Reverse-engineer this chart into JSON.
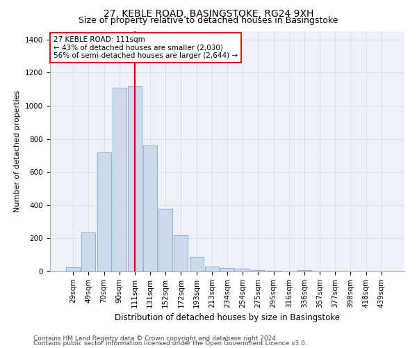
{
  "title": "27, KEBLE ROAD, BASINGSTOKE, RG24 9XH",
  "subtitle": "Size of property relative to detached houses in Basingstoke",
  "xlabel": "Distribution of detached houses by size in Basingstoke",
  "ylabel": "Number of detached properties",
  "categories": [
    "29sqm",
    "49sqm",
    "70sqm",
    "90sqm",
    "111sqm",
    "131sqm",
    "152sqm",
    "172sqm",
    "193sqm",
    "213sqm",
    "234sqm",
    "254sqm",
    "275sqm",
    "295sqm",
    "316sqm",
    "336sqm",
    "357sqm",
    "377sqm",
    "398sqm",
    "418sqm",
    "439sqm"
  ],
  "bar_heights": [
    25,
    235,
    720,
    1110,
    1120,
    760,
    380,
    220,
    90,
    30,
    20,
    15,
    10,
    5,
    0,
    10,
    0,
    0,
    0,
    0,
    0
  ],
  "bar_color": "#ccdaeb",
  "bar_edge_color": "#7aaace",
  "vline_x_idx": 4,
  "vline_color": "#cc0000",
  "annotation_text": "27 KEBLE ROAD: 111sqm\n← 43% of detached houses are smaller (2,030)\n56% of semi-detached houses are larger (2,644) →",
  "annotation_box_color": "#ffffff",
  "annotation_box_edge_color": "#cc0000",
  "ylim": [
    0,
    1450
  ],
  "yticks": [
    0,
    200,
    400,
    600,
    800,
    1000,
    1200,
    1400
  ],
  "footer1": "Contains HM Land Registry data © Crown copyright and database right 2024.",
  "footer2": "Contains public sector information licensed under the Open Government Licence v3.0.",
  "bg_color": "#eef2f8",
  "title_fontsize": 10,
  "subtitle_fontsize": 9,
  "xlabel_fontsize": 8.5,
  "ylabel_fontsize": 8,
  "tick_fontsize": 7.5,
  "annotation_fontsize": 7.5,
  "footer_fontsize": 6.5
}
